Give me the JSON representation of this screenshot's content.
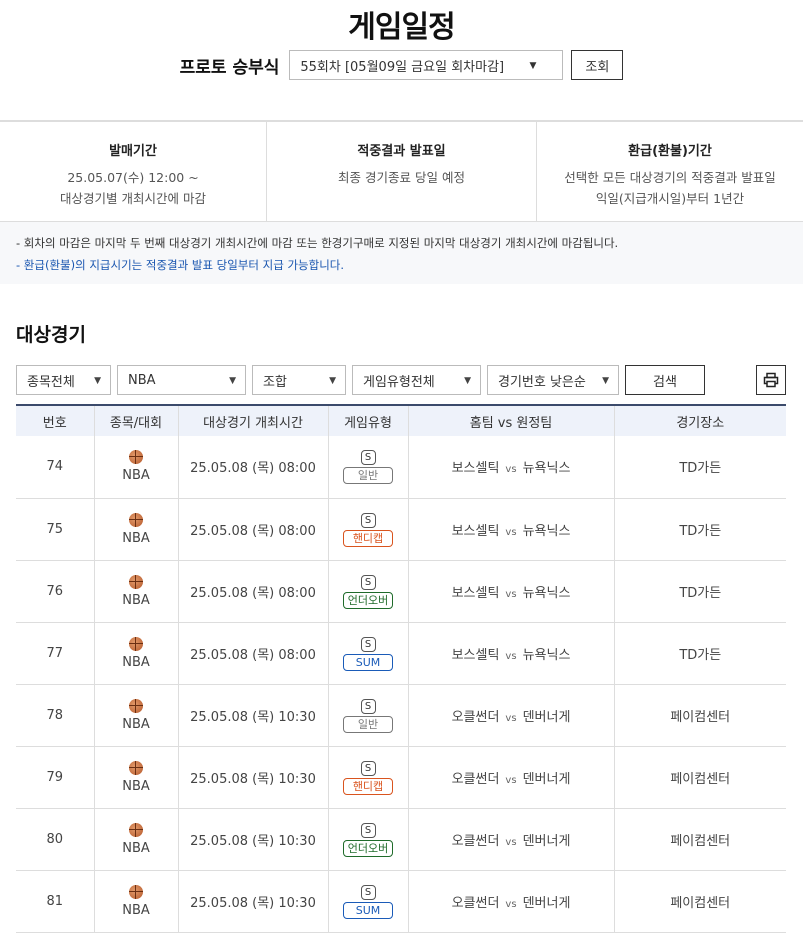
{
  "title": "게임일정",
  "selector": {
    "label": "프로토 승부식",
    "round": "55회차 [05월09일 금요일 회차마감]",
    "query_button": "조회"
  },
  "info": [
    {
      "heading": "발매기간",
      "lines": [
        "25.05.07(수) 12:00 ~",
        "대상경기별 개최시간에 마감"
      ]
    },
    {
      "heading": "적중결과 발표일",
      "lines": [
        "최종 경기종료 당일 예정"
      ]
    },
    {
      "heading": "환급(환불)기간",
      "lines": [
        "선택한 모든 대상경기의 적중결과 발표일",
        "익일(지급개시일)부터 1년간"
      ]
    }
  ],
  "notes": [
    "- 회차의 마감은 마지막 두 번째 대상경기 개최시간에 마감 또는 한경기구매로 지정된 마지막 대상경기 개최시간에 마감됩니다.",
    "- 환급(환불)의 지급시기는 적중결과 발표 당일부터 지급 가능합니다."
  ],
  "section_title": "대상경기",
  "filters": {
    "sport": "종목전체",
    "league": "NBA",
    "type": "조합",
    "game_type": "게임유형전체",
    "sort": "경기번호 낮은순",
    "search_button": "검색",
    "print_icon": "printer-icon"
  },
  "table": {
    "headers": [
      "번호",
      "종목/대회",
      "대상경기 개최시간",
      "게임유형",
      "홈팀 vs 원정팀",
      "경기장소"
    ],
    "vs": "vs",
    "rows": [
      {
        "no": "74",
        "league": "NBA",
        "time": "25.05.08 (목) 08:00",
        "s": "S",
        "type": "일반",
        "color": "#777777",
        "home": "보스셀틱",
        "away": "뉴욕닉스",
        "venue": "TD가든"
      },
      {
        "no": "75",
        "league": "NBA",
        "time": "25.05.08 (목) 08:00",
        "s": "S",
        "type": "핸디캡",
        "color": "#d9541e",
        "home": "보스셀틱",
        "away": "뉴욕닉스",
        "venue": "TD가든"
      },
      {
        "no": "76",
        "league": "NBA",
        "time": "25.05.08 (목) 08:00",
        "s": "S",
        "type": "언더오버",
        "color": "#1f6b2a",
        "home": "보스셀틱",
        "away": "뉴욕닉스",
        "venue": "TD가든"
      },
      {
        "no": "77",
        "league": "NBA",
        "time": "25.05.08 (목) 08:00",
        "s": "S",
        "type": "SUM",
        "color": "#1a5bb8",
        "home": "보스셀틱",
        "away": "뉴욕닉스",
        "venue": "TD가든"
      },
      {
        "no": "78",
        "league": "NBA",
        "time": "25.05.08 (목) 10:30",
        "s": "S",
        "type": "일반",
        "color": "#777777",
        "home": "오클썬더",
        "away": "덴버너게",
        "venue": "페이컴센터"
      },
      {
        "no": "79",
        "league": "NBA",
        "time": "25.05.08 (목) 10:30",
        "s": "S",
        "type": "핸디캡",
        "color": "#d9541e",
        "home": "오클썬더",
        "away": "덴버너게",
        "venue": "페이컴센터"
      },
      {
        "no": "80",
        "league": "NBA",
        "time": "25.05.08 (목) 10:30",
        "s": "S",
        "type": "언더오버",
        "color": "#1f6b2a",
        "home": "오클썬더",
        "away": "덴버너게",
        "venue": "페이컴센터"
      },
      {
        "no": "81",
        "league": "NBA",
        "time": "25.05.08 (목) 10:30",
        "s": "S",
        "type": "SUM",
        "color": "#1a5bb8",
        "home": "오클썬더",
        "away": "덴버너게",
        "venue": "페이컴센터"
      }
    ]
  }
}
